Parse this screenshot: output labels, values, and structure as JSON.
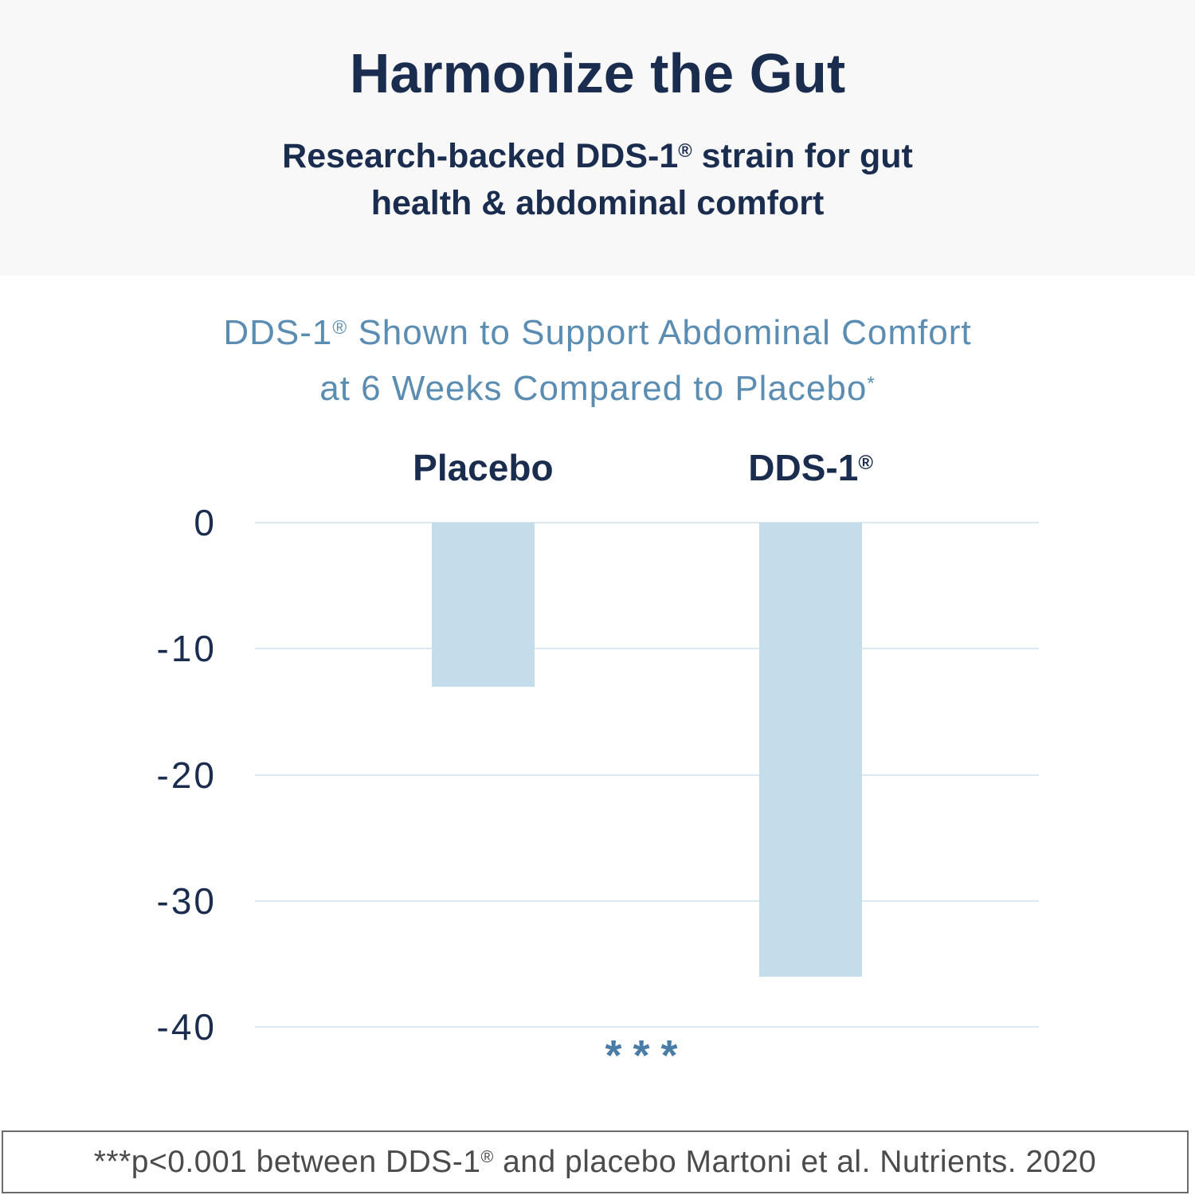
{
  "header": {
    "title": "Harmonize the Gut",
    "subtitle_line1": "Research-backed DDS-1® strain for gut",
    "subtitle_line2": "health & abdominal comfort"
  },
  "chart": {
    "title_line1": "DDS-1® Shown to Support Abdominal Comfort",
    "title_line2": "at 6 Weeks Compared to Placebo",
    "title_asterisk": "*",
    "significance_marker": "***"
  },
  "chart_data": {
    "type": "bar",
    "title": "DDS-1® Shown to Support Abdominal Comfort at 6 Weeks Compared to Placebo*",
    "categories": [
      "Placebo",
      "DDS-1®"
    ],
    "values": [
      -13,
      -36
    ],
    "xlabel": "",
    "ylabel": "",
    "ylim": [
      -40,
      0
    ],
    "yticks": [
      0,
      -10,
      -20,
      -30,
      -40
    ],
    "grid": true,
    "legend_position": "none",
    "annotation_below_chart": "***",
    "bar_color": "#c5dcea"
  },
  "footnote": "***p<0.001 between DDS-1® and placebo Martoni et al. Nutrients. 2020",
  "colors": {
    "header_background": "#f8f8f8",
    "navy_text": "#1b2d4f",
    "chart_title_blue": "#5b8db3",
    "bar_fill": "#c5dcea",
    "gridline": "#dce8f1",
    "significance_blue": "#4a7ca8",
    "footnote_text": "#4b4b4b",
    "footnote_border": "#6b6b6b"
  }
}
